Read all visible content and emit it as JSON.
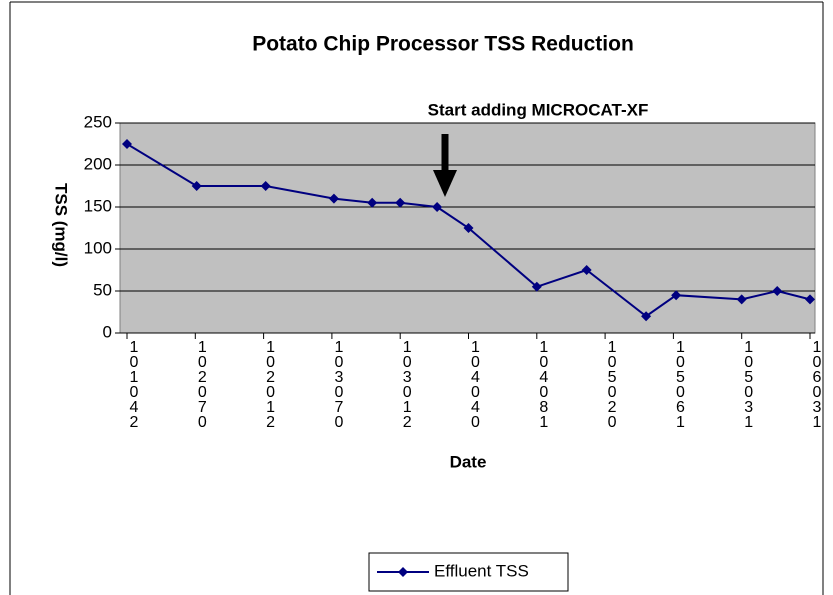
{
  "chart_data": {
    "type": "line",
    "title": "Potato Chip Processor TSS Reduction",
    "y_label": "TSS (mg/l)",
    "x_label": "Date",
    "annotation": "Start adding MICROCAT-XF",
    "x": [
      0,
      1.02,
      2.03,
      3.03,
      3.59,
      4.0,
      4.54,
      5.0,
      6.0,
      6.73,
      7.6,
      8.04,
      9.0,
      9.52,
      10
    ],
    "series": [
      {
        "name": "Effluent TSS",
        "color": "#000080",
        "values": [
          225,
          175,
          175,
          160,
          155,
          155,
          150,
          125,
          55,
          75,
          20,
          45,
          40,
          50,
          40
        ]
      }
    ],
    "xlim": [
      0,
      10
    ],
    "xticks": [
      {
        "value": 0,
        "label": "101042"
      },
      {
        "value": 1,
        "label": "102070"
      },
      {
        "value": 2,
        "label": "102012"
      },
      {
        "value": 3,
        "label": "103070"
      },
      {
        "value": 4,
        "label": "103012"
      },
      {
        "value": 5,
        "label": "104040"
      },
      {
        "value": 6,
        "label": "104081"
      },
      {
        "value": 7,
        "label": "105020"
      },
      {
        "value": 8,
        "label": "105061"
      },
      {
        "value": 9,
        "label": "105031"
      },
      {
        "value": 10,
        "label": "106031"
      }
    ],
    "ylim": [
      0,
      250
    ],
    "yticks": [
      0,
      50,
      100,
      150,
      200,
      250
    ],
    "grid": true,
    "legend": "bottom",
    "background": "#c0c0c0"
  }
}
